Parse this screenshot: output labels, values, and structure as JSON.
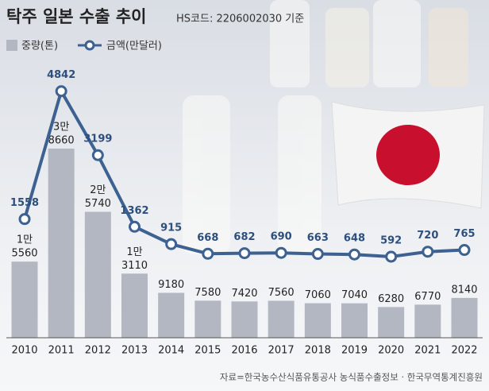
{
  "chart_data": {
    "type": "bar",
    "title": "탁주 일본 수출 추이",
    "subtitle": "HS코드: 2206002030 기준",
    "source": "자료=한국농수산식품유통공사 농식품수출정보 · 한국무역통계진흥원",
    "categories": [
      "2010",
      "2011",
      "2012",
      "2013",
      "2014",
      "2015",
      "2016",
      "2017",
      "2018",
      "2019",
      "2020",
      "2021",
      "2022"
    ],
    "ylim": [
      0,
      60000
    ],
    "y2lim": [
      0,
      6000
    ],
    "series": [
      {
        "name": "중량(톤)",
        "type": "bar",
        "color": "#b3b7c1",
        "values": [
          15560,
          38660,
          25740,
          13110,
          9180,
          7580,
          7420,
          7560,
          7060,
          7040,
          6280,
          6770,
          8140
        ],
        "value_labels": [
          [
            "1만",
            "5560"
          ],
          [
            "3만",
            "8660"
          ],
          [
            "2만",
            "5740"
          ],
          [
            "1만",
            "3110"
          ],
          [
            "9180"
          ],
          [
            "7580"
          ],
          [
            "7420"
          ],
          [
            "7560"
          ],
          [
            "7060"
          ],
          [
            "7040"
          ],
          [
            "6280"
          ],
          [
            "6770"
          ],
          [
            "8140"
          ]
        ]
      },
      {
        "name": "금액(만달러)",
        "type": "line",
        "axis": "y2",
        "color": "#3d6190",
        "values": [
          1558,
          4842,
          3199,
          1362,
          915,
          668,
          682,
          690,
          663,
          648,
          592,
          720,
          765
        ]
      }
    ]
  }
}
